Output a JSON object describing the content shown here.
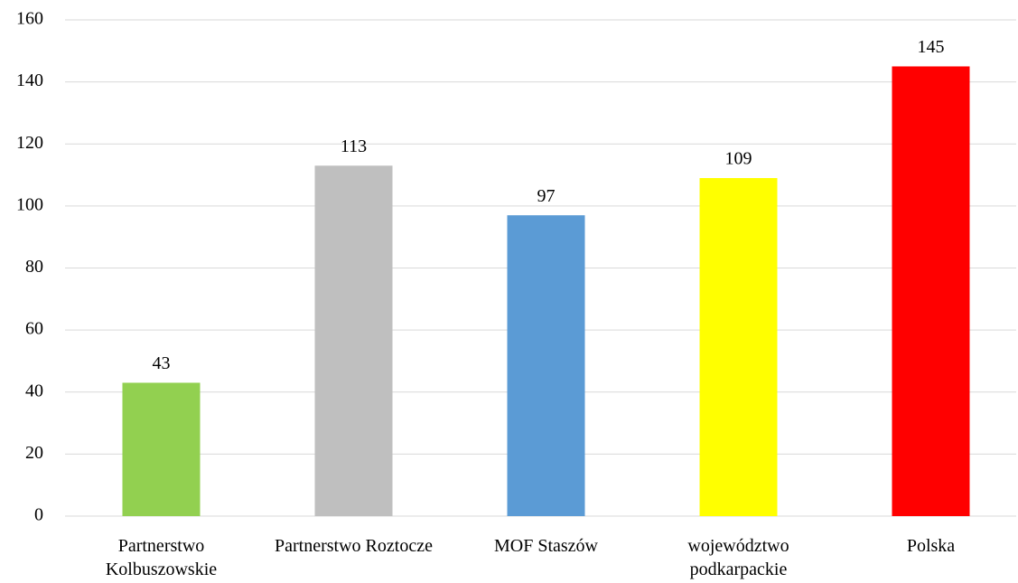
{
  "chart_data": {
    "type": "bar",
    "categories": [
      "Partnerstwo Kolbuszowskie",
      "Partnerstwo Roztocze",
      "MOF Staszów",
      "województwo podkarpackie",
      "Polska"
    ],
    "values": [
      43,
      113,
      97,
      109,
      145
    ],
    "colors": [
      "#92d050",
      "#bfbfbf",
      "#5b9bd5",
      "#ffff00",
      "#ff0000"
    ],
    "ylim": [
      0,
      160
    ],
    "yticks": [
      0,
      20,
      40,
      60,
      80,
      100,
      120,
      140,
      160
    ],
    "grid": true
  }
}
